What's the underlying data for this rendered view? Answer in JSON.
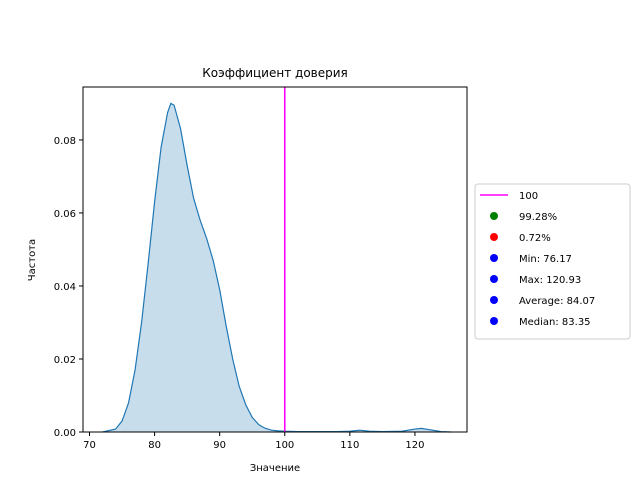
{
  "chart_data": {
    "type": "area",
    "title": "Коэффициент доверия",
    "xlabel": "Значение",
    "ylabel": "Частота",
    "xlim": [
      69,
      128
    ],
    "ylim": [
      0,
      0.0945
    ],
    "xticks": [
      70,
      80,
      90,
      100,
      110,
      120
    ],
    "xtick_labels": [
      "70",
      "80",
      "90",
      "100",
      "110",
      "120"
    ],
    "yticks": [
      0.0,
      0.02,
      0.04,
      0.06,
      0.08
    ],
    "ytick_labels": [
      "0.00",
      "0.02",
      "0.04",
      "0.06",
      "0.08"
    ],
    "grid": false,
    "legend_position": "right",
    "series": [
      {
        "color": "#1f77b4",
        "fill_color": "#1f77b4",
        "x": [
          72,
          74,
          75,
          76,
          77,
          78,
          79,
          80,
          81,
          82,
          82.5,
          83,
          84,
          85,
          86,
          87,
          88,
          89,
          90,
          91,
          92,
          93,
          94,
          95,
          96,
          97,
          98,
          99,
          100,
          102,
          105,
          108,
          110,
          111.5,
          113,
          115,
          118,
          120,
          121,
          122,
          124,
          125.5
        ],
        "y": [
          0.0,
          0.0008,
          0.003,
          0.008,
          0.017,
          0.03,
          0.046,
          0.063,
          0.078,
          0.0875,
          0.09,
          0.0895,
          0.083,
          0.073,
          0.064,
          0.058,
          0.053,
          0.047,
          0.039,
          0.029,
          0.02,
          0.0125,
          0.0075,
          0.004,
          0.002,
          0.001,
          0.0005,
          0.0003,
          0.0002,
          0.0001,
          0.0001,
          0.0001,
          0.0002,
          0.0005,
          0.0002,
          0.0001,
          0.0002,
          0.0008,
          0.001,
          0.0007,
          0.0001,
          0.0
        ]
      }
    ],
    "vline": {
      "x": 100,
      "color": "#ff00ff",
      "label": "100"
    },
    "legend": [
      {
        "type": "line",
        "label": "100",
        "color": "#ff00ff"
      },
      {
        "type": "dot",
        "label": "99.28%",
        "color": "#008000"
      },
      {
        "type": "dot",
        "label": "0.72%",
        "color": "#ff0000"
      },
      {
        "type": "dot",
        "label": "Min: 76.17",
        "color": "#0000ff"
      },
      {
        "type": "dot",
        "label": "Max: 120.93",
        "color": "#0000ff"
      },
      {
        "type": "dot",
        "label": "Average: 84.07",
        "color": "#0000ff"
      },
      {
        "type": "dot",
        "label": "Median: 83.35",
        "color": "#0000ff"
      }
    ]
  }
}
